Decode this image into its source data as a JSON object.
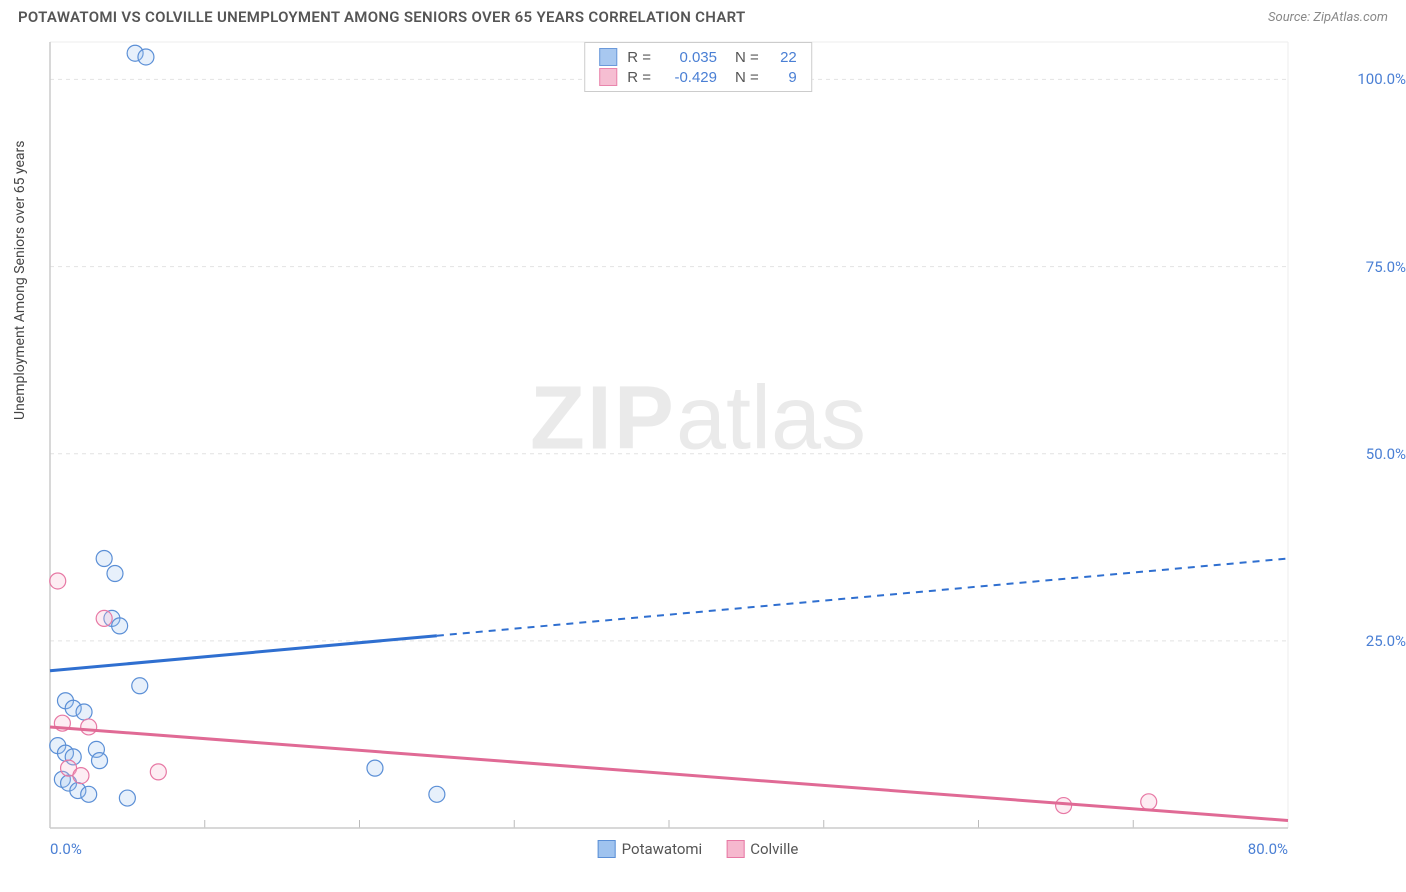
{
  "title": "POTAWATOMI VS COLVILLE UNEMPLOYMENT AMONG SENIORS OVER 65 YEARS CORRELATION CHART",
  "source": "Source: ZipAtlas.com",
  "ylabel": "Unemployment Among Seniors over 65 years",
  "watermark_bold": "ZIP",
  "watermark_light": "atlas",
  "chart": {
    "type": "scatter-with-regression",
    "background_color": "#ffffff",
    "grid_color": "#e2e2e2",
    "axis_color": "#cccccc",
    "tick_label_color": "#4a7fd4",
    "xlim": [
      0,
      80
    ],
    "ylim": [
      0,
      105
    ],
    "xtick_major": [
      0,
      80
    ],
    "xtick_minor": [
      10,
      20,
      30,
      40,
      50,
      60,
      70
    ],
    "xtick_labels": {
      "0": "0.0%",
      "80": "80.0%"
    },
    "ytick_major": [
      25,
      50,
      75,
      100
    ],
    "ytick_labels": {
      "25": "25.0%",
      "50": "50.0%",
      "75": "75.0%",
      "100": "100.0%"
    },
    "marker_radius": 8,
    "marker_stroke_width": 1.2,
    "marker_fill_opacity": 0.25,
    "line_width_solid": 3,
    "line_width_dash": 2
  },
  "series": [
    {
      "name": "Potawatomi",
      "color_fill": "#9fc3ef",
      "color_stroke": "#5b8fd6",
      "color_line": "#2f6fd0",
      "R": "0.035",
      "N": "22",
      "points": [
        [
          5.5,
          103.5
        ],
        [
          6.2,
          103.0
        ],
        [
          3.5,
          36.0
        ],
        [
          4.2,
          34.0
        ],
        [
          4.0,
          28.0
        ],
        [
          4.5,
          27.0
        ],
        [
          5.8,
          19.0
        ],
        [
          1.0,
          17.0
        ],
        [
          1.5,
          16.0
        ],
        [
          2.2,
          15.5
        ],
        [
          0.5,
          11.0
        ],
        [
          1.0,
          10.0
        ],
        [
          1.5,
          9.5
        ],
        [
          3.0,
          10.5
        ],
        [
          3.2,
          9.0
        ],
        [
          0.8,
          6.5
        ],
        [
          1.2,
          6.0
        ],
        [
          1.8,
          5.0
        ],
        [
          2.5,
          4.5
        ],
        [
          5.0,
          4.0
        ],
        [
          21.0,
          8.0
        ],
        [
          25.0,
          4.5
        ]
      ],
      "regression": {
        "x1": 0,
        "y1": 21.0,
        "x2": 80,
        "y2": 36.0,
        "solid_until_x": 25
      }
    },
    {
      "name": "Colville",
      "color_fill": "#f6b8ce",
      "color_stroke": "#e778a4",
      "color_line": "#e06a95",
      "R": "-0.429",
      "N": "9",
      "points": [
        [
          0.5,
          33.0
        ],
        [
          3.5,
          28.0
        ],
        [
          0.8,
          14.0
        ],
        [
          2.5,
          13.5
        ],
        [
          1.2,
          8.0
        ],
        [
          2.0,
          7.0
        ],
        [
          7.0,
          7.5
        ],
        [
          65.5,
          3.0
        ],
        [
          71.0,
          3.5
        ]
      ],
      "regression": {
        "x1": 0,
        "y1": 13.5,
        "x2": 80,
        "y2": 1.0,
        "solid_until_x": 80
      }
    }
  ],
  "stats_box_labels": {
    "R": "R =",
    "N": "N ="
  },
  "legend": [
    "Potawatomi",
    "Colville"
  ]
}
